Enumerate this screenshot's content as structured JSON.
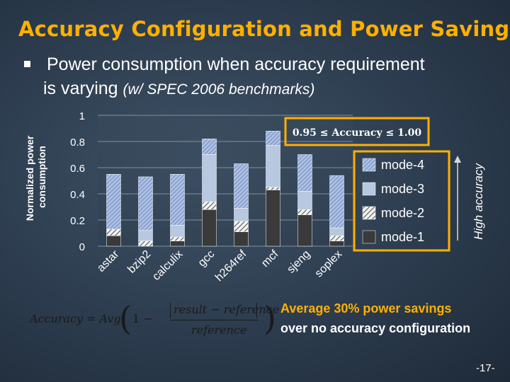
{
  "title": "Accuracy Configuration and Power Saving",
  "bullet": {
    "line1": "Power consumption when accuracy requirement",
    "line2": "is varying",
    "note": "(w/ SPEC 2006 benchmarks)"
  },
  "annotation": {
    "accuracy_range": "0.95 ≤ Accuracy ≤ 1.00",
    "high_accuracy": "High accuracy",
    "savings_line1": "Average 30%  power savings",
    "savings_line2": "over no accuracy configuration"
  },
  "formula": {
    "lhs": "Accuracy = Avg",
    "one_minus": "1 −",
    "numerator": "result − reference",
    "denominator": "reference"
  },
  "page_number": "-17-",
  "colors": {
    "title": "#ffb000",
    "mode1": "#3a3a3a",
    "mode2": "#dcdcdc",
    "mode3": "#b7c8e0",
    "mode4": "#a8bde0",
    "annotation_border": "#ffb000"
  },
  "chart_data": {
    "type": "bar",
    "stacked": true,
    "categories": [
      "astar",
      "bzip2",
      "calculix",
      "gcc",
      "h264ref",
      "mcf",
      "sjeng",
      "soplex"
    ],
    "series": [
      {
        "name": "mode-1",
        "values": [
          0.08,
          0.0,
          0.04,
          0.28,
          0.11,
          0.43,
          0.24,
          0.04
        ]
      },
      {
        "name": "mode-2",
        "values": [
          0.05,
          0.04,
          0.03,
          0.06,
          0.08,
          0.02,
          0.04,
          0.04
        ]
      },
      {
        "name": "mode-3",
        "values": [
          0.0,
          0.08,
          0.09,
          0.36,
          0.1,
          0.32,
          0.14,
          0.06
        ]
      },
      {
        "name": "mode-4",
        "values": [
          0.42,
          0.41,
          0.39,
          0.12,
          0.34,
          0.11,
          0.28,
          0.4
        ]
      }
    ],
    "ylabel": "Normalized power consumption",
    "xlabel": "",
    "ylim": [
      0,
      1
    ],
    "yticks": [
      "0",
      "0.2",
      "0.4",
      "0.6",
      "0.8",
      "1"
    ],
    "grid": true,
    "legend": "right"
  }
}
